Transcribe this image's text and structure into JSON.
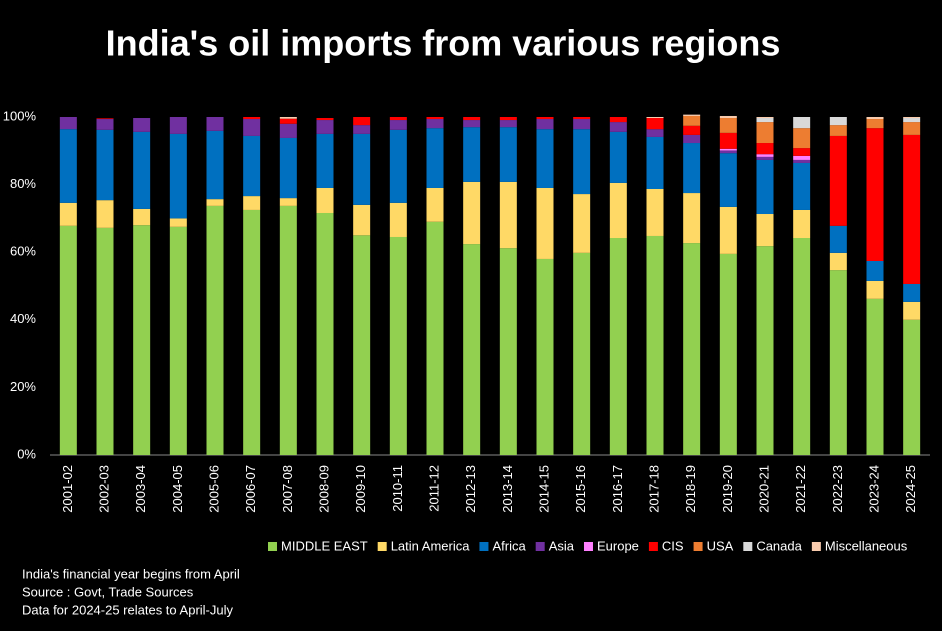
{
  "chart_data": {
    "type": "stacked_bar",
    "title": "India's oil imports from various regions",
    "categories": [
      "2001-02",
      "2002-03",
      "2003-04",
      "2004-05",
      "2005-06",
      "2006-07",
      "2007-08",
      "2008-09",
      "2009-10",
      "2010-11",
      "2011-12",
      "2012-13",
      "2013-14",
      "2014-15",
      "2015-16",
      "2016-17",
      "2017-18",
      "2018-19",
      "2019-20",
      "2020-21",
      "2021-22",
      "2022-23",
      "2023-24",
      "2024-25"
    ],
    "series": [
      {
        "name": "MIDDLE EAST",
        "color": "#92d050",
        "values": [
          67.8,
          67.2,
          68,
          67.5,
          73.7,
          72.5,
          73.7,
          71.6,
          65,
          64.5,
          69,
          62.4,
          61.2,
          58,
          59.8,
          64.2,
          64.8,
          62.7,
          59.5,
          61.8,
          64.2,
          54.7,
          46.2,
          40
        ]
      },
      {
        "name": "Latin America",
        "color": "#ffd966",
        "values": [
          6.8,
          8.2,
          4.8,
          2.5,
          2,
          4.1,
          2.3,
          7.4,
          9,
          10.1,
          10,
          18.4,
          19.6,
          21,
          17.4,
          16.3,
          13.9,
          14.8,
          13.9,
          9.5,
          8.3,
          5.1,
          5.3,
          5.3
        ]
      },
      {
        "name": "Africa",
        "color": "#0070c0",
        "values": [
          21.8,
          20.8,
          22.8,
          25,
          20.2,
          17.8,
          17.8,
          16,
          21,
          21.6,
          17.7,
          16.2,
          16.2,
          17.4,
          19.2,
          15.1,
          15.4,
          14.8,
          15.9,
          16,
          13.9,
          8,
          5.9,
          5.3
        ]
      },
      {
        "name": "Asia",
        "color": "#7030a0",
        "values": [
          3.6,
          3.2,
          4.1,
          5,
          4.1,
          5,
          4.2,
          4.1,
          2.6,
          2.9,
          2.7,
          2.1,
          2.1,
          3,
          3,
          2.9,
          2.3,
          2.4,
          0.8,
          0.9,
          0.9,
          0,
          0,
          0
        ]
      },
      {
        "name": "Europe",
        "color": "#ff80ff",
        "values": [
          0,
          0,
          0,
          0,
          0,
          0,
          0,
          0,
          0,
          0,
          0,
          0,
          0,
          0,
          0,
          0,
          0,
          0,
          0.5,
          0.8,
          1.2,
          0,
          0,
          0
        ]
      },
      {
        "name": "CIS",
        "color": "#ff0000",
        "values": [
          0,
          0.2,
          0,
          0,
          0,
          0.6,
          1.5,
          0.6,
          2.4,
          0.9,
          0.6,
          0.9,
          0.9,
          0.6,
          0.6,
          1.5,
          3.3,
          2.7,
          4.7,
          3.3,
          2.3,
          26.6,
          39.3,
          44.1
        ]
      },
      {
        "name": "USA",
        "color": "#ed7d31",
        "values": [
          0,
          0,
          0,
          0,
          0,
          0,
          0,
          0,
          0,
          0,
          0,
          0,
          0,
          0,
          0,
          0,
          0,
          2.9,
          4.4,
          6.2,
          5.9,
          3.2,
          2.7,
          3.8
        ]
      },
      {
        "name": "Canada",
        "color": "#d9d9d9",
        "values": [
          0,
          0,
          0,
          0,
          0,
          0,
          0,
          0,
          0,
          0,
          0,
          0,
          0,
          0,
          0,
          0,
          0,
          0,
          0,
          1.2,
          3.3,
          2.4,
          0,
          1.2
        ]
      },
      {
        "name": "Miscellaneous",
        "color": "#f8cbad",
        "values": [
          0,
          0,
          0,
          0,
          0,
          0,
          0.5,
          0,
          0,
          0,
          0,
          0,
          0,
          0,
          0,
          0,
          0.3,
          0.4,
          0.6,
          0.3,
          0,
          0,
          0.6,
          0.3
        ]
      }
    ],
    "ylim": [
      0,
      100
    ],
    "yticks": [
      {
        "value": 0,
        "label": "0%"
      },
      {
        "value": 20,
        "label": "20%"
      },
      {
        "value": 40,
        "label": "40%"
      },
      {
        "value": 60,
        "label": "60%"
      },
      {
        "value": 80,
        "label": "80%"
      },
      {
        "value": 100,
        "label": "100%"
      }
    ],
    "grid": false,
    "legend": "bottom",
    "notes": [
      "India's financial year begins from April",
      "Source : Govt, Trade Sources",
      "Data for 2024-25 relates to April-July"
    ]
  }
}
